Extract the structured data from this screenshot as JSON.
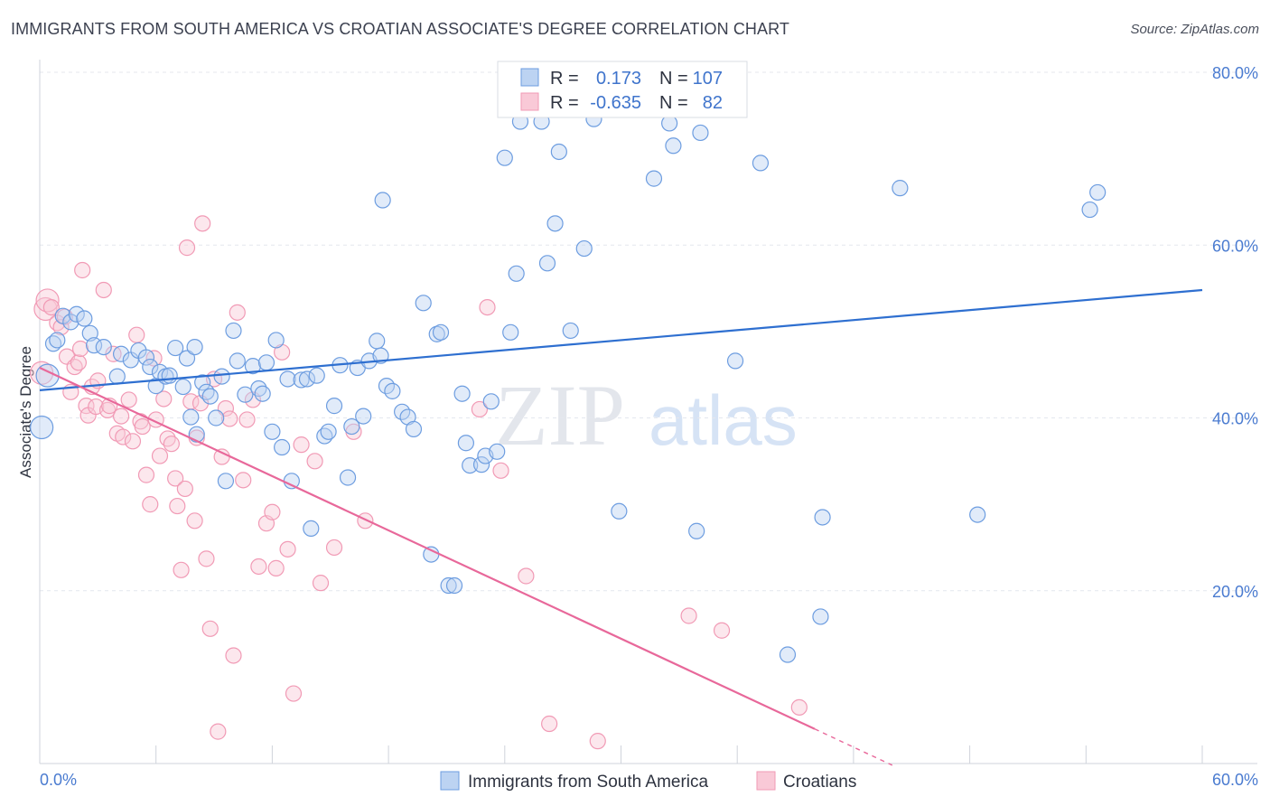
{
  "chart_data": {
    "type": "scatter",
    "title": "IMMIGRANTS FROM SOUTH AMERICA VS CROATIAN ASSOCIATE'S DEGREE CORRELATION CHART",
    "source": "Source: ZipAtlas.com",
    "ylabel": "Associate's Degree",
    "xlim": [
      0,
      60
    ],
    "ylim": [
      0,
      80
    ],
    "y_ticks": [
      20,
      40,
      60,
      80
    ],
    "y_tick_labels": [
      "20.0%",
      "40.0%",
      "60.0%",
      "80.0%"
    ],
    "x_tick_labels": [
      "0.0%",
      "60.0%"
    ],
    "grid": true,
    "watermark": {
      "zip": "ZIP",
      "atlas": "atlas"
    },
    "stats_legend": [
      {
        "r_label": "R =",
        "r_value": "0.173",
        "n_label": "N =",
        "n_value": "107"
      },
      {
        "r_label": "R =",
        "r_value": "-0.635",
        "n_label": "N =",
        "n_value": "82"
      }
    ],
    "series": [
      {
        "name": "Immigrants from South America",
        "color": "#6d9de0",
        "trend": {
          "x": [
            0,
            60
          ],
          "y": [
            43.2,
            54.8
          ]
        },
        "points": [
          [
            0.1,
            38.9
          ],
          [
            0.4,
            44.9
          ],
          [
            0.7,
            48.6
          ],
          [
            0.9,
            49.0
          ],
          [
            1.2,
            51.8
          ],
          [
            1.6,
            51.1
          ],
          [
            1.9,
            52.0
          ],
          [
            2.3,
            51.5
          ],
          [
            2.6,
            49.8
          ],
          [
            2.8,
            48.4
          ],
          [
            3.3,
            48.2
          ],
          [
            4.0,
            44.8
          ],
          [
            4.2,
            47.4
          ],
          [
            4.7,
            46.7
          ],
          [
            5.1,
            47.8
          ],
          [
            5.5,
            47.0
          ],
          [
            5.7,
            45.9
          ],
          [
            6.0,
            43.7
          ],
          [
            6.2,
            45.3
          ],
          [
            6.5,
            44.8
          ],
          [
            6.7,
            44.9
          ],
          [
            7.0,
            48.1
          ],
          [
            7.4,
            43.6
          ],
          [
            7.6,
            46.9
          ],
          [
            7.8,
            40.1
          ],
          [
            8.0,
            48.2
          ],
          [
            8.1,
            38.1
          ],
          [
            8.4,
            44.1
          ],
          [
            8.6,
            43.0
          ],
          [
            8.8,
            42.5
          ],
          [
            9.1,
            40.0
          ],
          [
            9.4,
            44.8
          ],
          [
            9.6,
            32.7
          ],
          [
            10.0,
            50.1
          ],
          [
            10.2,
            46.6
          ],
          [
            10.6,
            42.7
          ],
          [
            11.0,
            46.0
          ],
          [
            11.3,
            43.4
          ],
          [
            11.5,
            42.8
          ],
          [
            11.7,
            46.4
          ],
          [
            12.0,
            38.4
          ],
          [
            12.2,
            49.0
          ],
          [
            12.5,
            36.6
          ],
          [
            12.8,
            44.5
          ],
          [
            13.0,
            32.7
          ],
          [
            13.5,
            44.4
          ],
          [
            13.8,
            44.5
          ],
          [
            14.0,
            27.2
          ],
          [
            14.3,
            44.9
          ],
          [
            14.7,
            37.9
          ],
          [
            14.9,
            38.4
          ],
          [
            15.2,
            41.4
          ],
          [
            15.5,
            46.1
          ],
          [
            15.9,
            33.1
          ],
          [
            16.1,
            39.0
          ],
          [
            16.4,
            45.8
          ],
          [
            16.7,
            40.2
          ],
          [
            17.0,
            46.6
          ],
          [
            17.4,
            48.9
          ],
          [
            17.6,
            47.2
          ],
          [
            17.9,
            43.7
          ],
          [
            18.2,
            43.1
          ],
          [
            18.7,
            40.7
          ],
          [
            19.0,
            40.1
          ],
          [
            19.3,
            38.7
          ],
          [
            19.8,
            53.3
          ],
          [
            20.2,
            24.2
          ],
          [
            20.5,
            49.7
          ],
          [
            20.7,
            49.9
          ],
          [
            21.1,
            20.6
          ],
          [
            21.4,
            20.6
          ],
          [
            21.8,
            42.8
          ],
          [
            22.0,
            37.1
          ],
          [
            22.2,
            34.5
          ],
          [
            22.8,
            34.6
          ],
          [
            23.0,
            35.6
          ],
          [
            23.3,
            41.9
          ],
          [
            23.6,
            36.1
          ],
          [
            17.7,
            65.2
          ],
          [
            24.0,
            70.1
          ],
          [
            24.3,
            49.9
          ],
          [
            24.6,
            56.7
          ],
          [
            24.8,
            74.3
          ],
          [
            25.9,
            74.3
          ],
          [
            26.2,
            57.9
          ],
          [
            26.6,
            62.5
          ],
          [
            26.8,
            70.8
          ],
          [
            27.4,
            50.1
          ],
          [
            28.1,
            59.6
          ],
          [
            28.6,
            74.6
          ],
          [
            29.9,
            29.2
          ],
          [
            31.7,
            67.7
          ],
          [
            32.5,
            74.1
          ],
          [
            32.7,
            71.5
          ],
          [
            33.9,
            26.9
          ],
          [
            34.1,
            73.0
          ],
          [
            35.9,
            46.6
          ],
          [
            37.2,
            69.5
          ],
          [
            38.6,
            12.6
          ],
          [
            40.4,
            28.5
          ],
          [
            40.3,
            17.0
          ],
          [
            44.4,
            66.6
          ],
          [
            48.4,
            28.8
          ],
          [
            54.2,
            64.1
          ],
          [
            54.6,
            66.1
          ]
        ]
      },
      {
        "name": "Croatians",
        "color": "#f19ab5",
        "trend": {
          "x": [
            0,
            40
          ],
          "y": [
            45.8,
            4.0
          ]
        },
        "trend_dashed": {
          "x": [
            40,
            44
          ],
          "y": [
            4.0,
            -0.2
          ]
        },
        "points": [
          [
            0.1,
            45.2
          ],
          [
            0.3,
            52.6
          ],
          [
            0.4,
            53.6
          ],
          [
            0.6,
            52.8
          ],
          [
            0.9,
            51.0
          ],
          [
            1.1,
            50.5
          ],
          [
            1.3,
            51.7
          ],
          [
            1.4,
            47.1
          ],
          [
            1.6,
            43.0
          ],
          [
            1.8,
            45.9
          ],
          [
            2.0,
            46.4
          ],
          [
            2.2,
            57.1
          ],
          [
            2.4,
            41.4
          ],
          [
            2.5,
            40.3
          ],
          [
            2.7,
            43.6
          ],
          [
            2.9,
            41.3
          ],
          [
            3.0,
            44.3
          ],
          [
            3.3,
            54.8
          ],
          [
            3.5,
            40.9
          ],
          [
            3.6,
            41.4
          ],
          [
            3.8,
            47.4
          ],
          [
            4.0,
            38.2
          ],
          [
            4.2,
            40.2
          ],
          [
            4.3,
            37.8
          ],
          [
            4.6,
            42.1
          ],
          [
            4.8,
            37.3
          ],
          [
            5.0,
            49.6
          ],
          [
            5.2,
            39.6
          ],
          [
            5.3,
            39.0
          ],
          [
            5.5,
            33.4
          ],
          [
            5.7,
            30.0
          ],
          [
            5.9,
            46.9
          ],
          [
            6.0,
            39.8
          ],
          [
            6.2,
            35.6
          ],
          [
            6.4,
            42.2
          ],
          [
            6.6,
            37.6
          ],
          [
            6.8,
            37.0
          ],
          [
            7.0,
            33.0
          ],
          [
            7.1,
            29.8
          ],
          [
            7.3,
            22.4
          ],
          [
            7.5,
            31.8
          ],
          [
            7.6,
            59.7
          ],
          [
            7.8,
            41.9
          ],
          [
            8.0,
            28.1
          ],
          [
            8.1,
            37.7
          ],
          [
            8.3,
            41.7
          ],
          [
            8.4,
            62.5
          ],
          [
            8.6,
            23.7
          ],
          [
            8.8,
            15.6
          ],
          [
            9.0,
            44.5
          ],
          [
            9.2,
            3.7
          ],
          [
            9.4,
            35.5
          ],
          [
            9.6,
            41.1
          ],
          [
            9.8,
            39.9
          ],
          [
            10.0,
            12.5
          ],
          [
            10.2,
            52.2
          ],
          [
            10.5,
            32.8
          ],
          [
            10.7,
            39.8
          ],
          [
            11.0,
            42.1
          ],
          [
            11.3,
            22.8
          ],
          [
            11.7,
            27.8
          ],
          [
            12.0,
            29.1
          ],
          [
            12.2,
            22.6
          ],
          [
            12.5,
            47.6
          ],
          [
            12.8,
            24.8
          ],
          [
            13.1,
            8.1
          ],
          [
            13.5,
            36.9
          ],
          [
            14.2,
            35.0
          ],
          [
            14.5,
            20.9
          ],
          [
            15.2,
            25.0
          ],
          [
            16.2,
            38.4
          ],
          [
            16.8,
            28.1
          ],
          [
            22.7,
            41.0
          ],
          [
            23.1,
            52.8
          ],
          [
            23.8,
            33.9
          ],
          [
            25.1,
            21.7
          ],
          [
            26.3,
            4.6
          ],
          [
            28.8,
            2.6
          ],
          [
            33.5,
            17.1
          ],
          [
            35.2,
            15.4
          ],
          [
            39.2,
            6.5
          ],
          [
            2.1,
            48.0
          ]
        ]
      }
    ]
  },
  "bottom_legend": [
    {
      "label": "Immigrants from South America"
    },
    {
      "label": "Croatians"
    }
  ]
}
